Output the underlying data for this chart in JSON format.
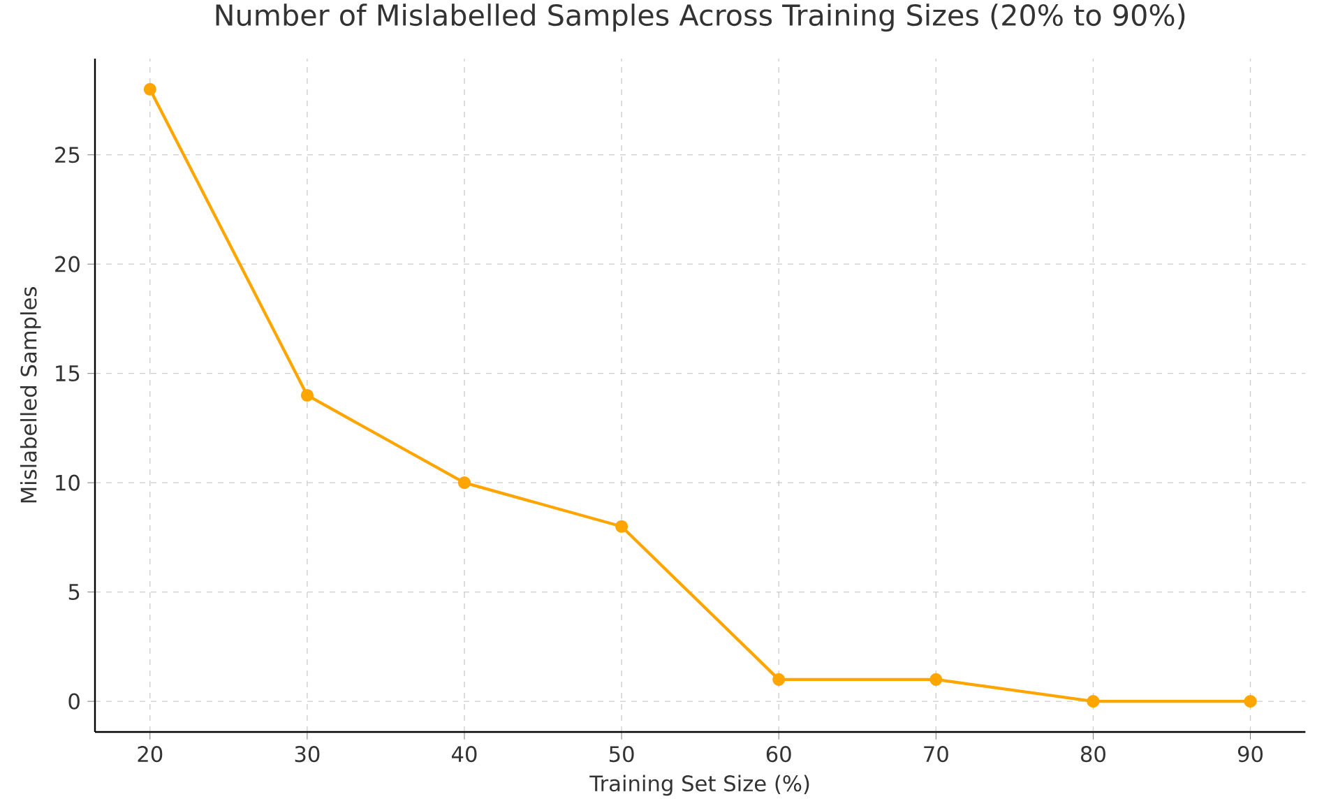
{
  "chart_data": {
    "type": "line",
    "title": "Number of Mislabelled Samples Across Training Sizes (20% to 90%)",
    "xlabel": "Training Set Size (%)",
    "ylabel": "Mislabelled Samples",
    "x": [
      20,
      30,
      40,
      50,
      60,
      70,
      80,
      90
    ],
    "series": [
      {
        "color": "#ffa500",
        "values": [
          28,
          14,
          10,
          8,
          1,
          1,
          0,
          0
        ]
      }
    ],
    "xlim": [
      16.5,
      93.5
    ],
    "xticks": [
      20,
      30,
      40,
      50,
      60,
      70,
      80,
      90
    ],
    "ylim": [
      -1.4,
      29.4
    ],
    "yticks": [
      0,
      5,
      10,
      15,
      20,
      25
    ],
    "grid": true,
    "marker": "circle",
    "line_style": "solid"
  }
}
